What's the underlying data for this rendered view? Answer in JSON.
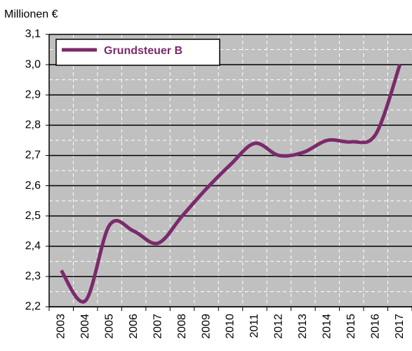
{
  "chart_data": {
    "type": "line",
    "y_label": "Millionen €",
    "categories": [
      "2003",
      "2004",
      "2005",
      "2006",
      "2007",
      "2008",
      "2009",
      "2010",
      "2011",
      "2012",
      "2013",
      "2014",
      "2015",
      "2016",
      "2017"
    ],
    "series": [
      {
        "name": "Grundsteuer B",
        "color": "#7b2a6b",
        "values": [
          2.32,
          2.22,
          2.47,
          2.45,
          2.41,
          2.5,
          2.59,
          2.67,
          2.74,
          2.7,
          2.71,
          2.75,
          2.745,
          2.77,
          3.0
        ]
      }
    ],
    "ylim": [
      2.2,
      3.1
    ],
    "yticks": [
      {
        "value": 2.2,
        "label": "2,2"
      },
      {
        "value": 2.3,
        "label": "2,3"
      },
      {
        "value": 2.4,
        "label": "2,4"
      },
      {
        "value": 2.5,
        "label": "2,5"
      },
      {
        "value": 2.6,
        "label": "2,6"
      },
      {
        "value": 2.7,
        "label": "2,7"
      },
      {
        "value": 2.8,
        "label": "2,8"
      },
      {
        "value": 2.9,
        "label": "2,9"
      },
      {
        "value": 3.0,
        "label": "3,0"
      },
      {
        "value": 3.1,
        "label": "3,1"
      }
    ],
    "grid": true,
    "legend": "top-left",
    "smooth": true
  }
}
